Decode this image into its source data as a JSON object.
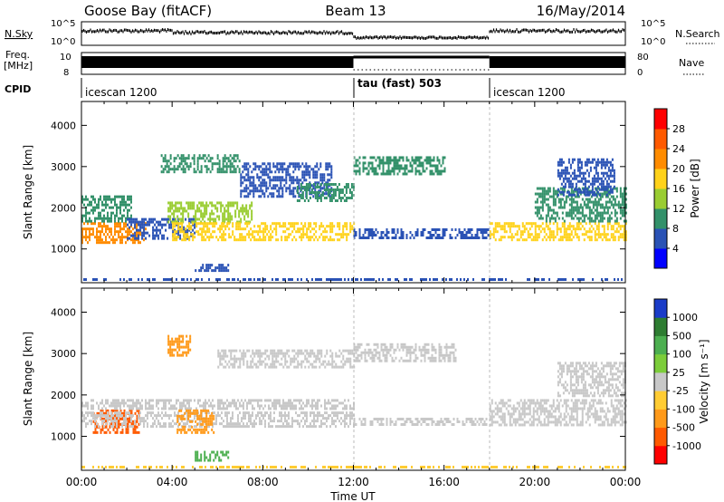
{
  "header": {
    "station": "Goose Bay (fitACF)",
    "beam": "Beam 13",
    "date": "16/May/2014"
  },
  "top_panels": {
    "nsky": {
      "label": "N.Sky",
      "left_ticks": [
        "10^5",
        "10^0"
      ],
      "right_label": "N.Search",
      "right_ticks": [
        "10^5",
        "10^0"
      ]
    },
    "freq": {
      "label_line1": "Freq.",
      "label_line2": "[MHz]",
      "left_ticks": [
        "10",
        "8"
      ],
      "right_label": "Nave",
      "right_ticks": [
        "80",
        "0"
      ]
    },
    "cpid": {
      "label": "CPID",
      "segments": [
        {
          "name": "icescan 1200",
          "start_h": 0,
          "end_h": 12
        },
        {
          "name": "tau (fast) 503",
          "start_h": 12,
          "end_h": 18
        },
        {
          "name": "icescan 1200",
          "start_h": 18,
          "end_h": 24
        }
      ]
    }
  },
  "chart_data": [
    {
      "type": "heatmap",
      "title": "",
      "quantity": "Power",
      "xlabel": "Time UT",
      "ylabel": "Slant Range [km]",
      "xlim_hours": [
        0,
        24
      ],
      "ylim": [
        180,
        4580
      ],
      "x_tick_labels": [
        "00:00",
        "04:00",
        "08:00",
        "12:00",
        "16:00",
        "20:00",
        "00:00"
      ],
      "y_ticks": [
        1000,
        2000,
        3000,
        4000
      ],
      "colorbar": {
        "label": "Power [dB]",
        "tick_labels": [
          "4",
          "8",
          "12",
          "16",
          "20",
          "24",
          "28"
        ],
        "colors": [
          "#0000ff",
          "#2a52b5",
          "#33916a",
          "#9acd32",
          "#ffd21a",
          "#ff8c00",
          "#ff5a00",
          "#ff0000"
        ]
      },
      "regions": [
        {
          "start_h": 0.0,
          "end_h": 2.8,
          "range_lo": 1150,
          "range_hi": 1650,
          "power_db": 20
        },
        {
          "start_h": 0.0,
          "end_h": 2.2,
          "range_lo": 1700,
          "range_hi": 2300,
          "power_db": 10
        },
        {
          "start_h": 2.0,
          "end_h": 5.0,
          "range_lo": 1250,
          "range_hi": 1750,
          "power_db": 6
        },
        {
          "start_h": 3.8,
          "end_h": 7.5,
          "range_lo": 1650,
          "range_hi": 2150,
          "power_db": 14
        },
        {
          "start_h": 4.0,
          "end_h": 12.0,
          "range_lo": 1250,
          "range_hi": 1650,
          "power_db": 18
        },
        {
          "start_h": 3.5,
          "end_h": 7.0,
          "range_lo": 2900,
          "range_hi": 3300,
          "power_db": 8
        },
        {
          "start_h": 7.0,
          "end_h": 11.0,
          "range_lo": 2300,
          "range_hi": 3100,
          "power_db": 7
        },
        {
          "start_h": 9.5,
          "end_h": 12.0,
          "range_lo": 2200,
          "range_hi": 2600,
          "power_db": 10
        },
        {
          "start_h": 5.0,
          "end_h": 6.5,
          "range_lo": 480,
          "range_hi": 640,
          "power_db": 6
        },
        {
          "start_h": 12.0,
          "end_h": 18.0,
          "range_lo": 1300,
          "range_hi": 1500,
          "power_db": 7
        },
        {
          "start_h": 12.0,
          "end_h": 16.0,
          "range_lo": 2850,
          "range_hi": 3250,
          "power_db": 8
        },
        {
          "start_h": 18.0,
          "end_h": 24.0,
          "range_lo": 1200,
          "range_hi": 1650,
          "power_db": 19
        },
        {
          "start_h": 20.0,
          "end_h": 24.0,
          "range_lo": 1700,
          "range_hi": 2500,
          "power_db": 9
        },
        {
          "start_h": 21.0,
          "end_h": 23.5,
          "range_lo": 2300,
          "range_hi": 3200,
          "power_db": 6
        }
      ]
    },
    {
      "type": "heatmap",
      "title": "",
      "quantity": "Velocity",
      "xlabel": "Time UT",
      "ylabel": "Slant Range [km]",
      "xlim_hours": [
        0,
        24
      ],
      "ylim": [
        180,
        4580
      ],
      "x_tick_labels": [
        "00:00",
        "04:00",
        "08:00",
        "12:00",
        "16:00",
        "20:00",
        "00:00"
      ],
      "y_ticks": [
        1000,
        2000,
        3000,
        4000
      ],
      "colorbar": {
        "label": "Velocity [m s⁻¹]",
        "tick_labels": [
          "1000",
          "500",
          "100",
          "25",
          "-25",
          "-100",
          "-500",
          "-1000"
        ],
        "colors": [
          "#1a3cc8",
          "#2e7d32",
          "#4caf50",
          "#7ccd3a",
          "#c8c8c8",
          "#ffcc33",
          "#ff9a1a",
          "#ff5a00",
          "#ff0000"
        ]
      },
      "regions": [
        {
          "start_h": 0.5,
          "end_h": 2.5,
          "range_lo": 1100,
          "range_hi": 1650,
          "velocity_ms": -300
        },
        {
          "start_h": 0.0,
          "end_h": 12.0,
          "range_lo": 1650,
          "range_hi": 1900,
          "velocity_ms": 0
        },
        {
          "start_h": 0.0,
          "end_h": 12.0,
          "range_lo": 1250,
          "range_hi": 1600,
          "velocity_ms": 0
        },
        {
          "start_h": 4.2,
          "end_h": 5.8,
          "range_lo": 1100,
          "range_hi": 1650,
          "velocity_ms": -250
        },
        {
          "start_h": 3.8,
          "end_h": 4.8,
          "range_lo": 2950,
          "range_hi": 3450,
          "velocity_ms": -120
        },
        {
          "start_h": 6.0,
          "end_h": 12.0,
          "range_lo": 2700,
          "range_hi": 3100,
          "velocity_ms": 0
        },
        {
          "start_h": 5.0,
          "end_h": 6.5,
          "range_lo": 450,
          "range_hi": 650,
          "velocity_ms": 80
        },
        {
          "start_h": 12.0,
          "end_h": 16.5,
          "range_lo": 2850,
          "range_hi": 3250,
          "velocity_ms": 0
        },
        {
          "start_h": 12.0,
          "end_h": 18.0,
          "range_lo": 1300,
          "range_hi": 1450,
          "velocity_ms": 0
        },
        {
          "start_h": 18.0,
          "end_h": 24.0,
          "range_lo": 1300,
          "range_hi": 1900,
          "velocity_ms": 0
        },
        {
          "start_h": 21.0,
          "end_h": 24.0,
          "range_lo": 2000,
          "range_hi": 2800,
          "velocity_ms": 0
        }
      ]
    }
  ]
}
